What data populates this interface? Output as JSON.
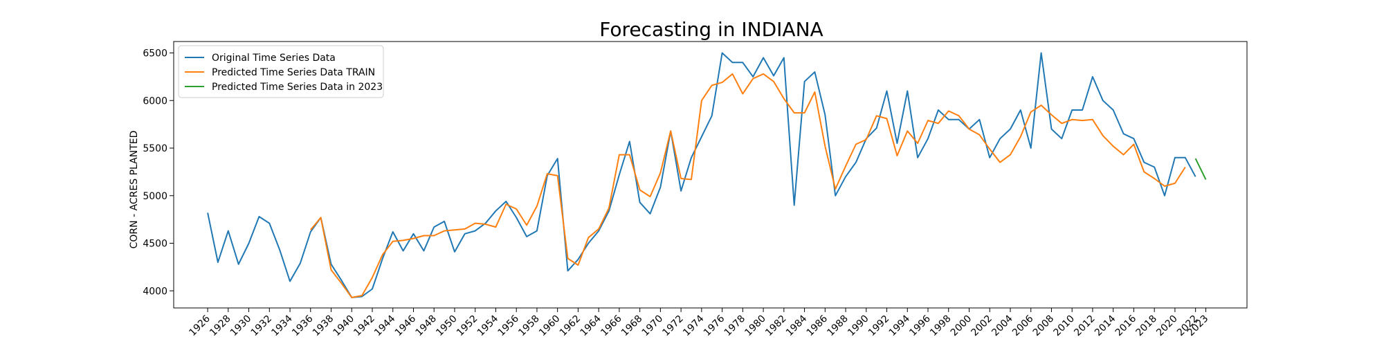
{
  "chart_data": {
    "type": "line",
    "title": "Forecasting in INDIANA",
    "xlabel": "",
    "ylabel": "CORN - ACRES PLANTED",
    "xlim": [
      1922.7,
      2027.0
    ],
    "ylim": [
      3820,
      6620
    ],
    "x_ticks": [
      1926,
      1928,
      1930,
      1932,
      1934,
      1936,
      1938,
      1940,
      1942,
      1944,
      1946,
      1948,
      1950,
      1952,
      1954,
      1956,
      1958,
      1960,
      1962,
      1964,
      1966,
      1968,
      1970,
      1972,
      1974,
      1976,
      1978,
      1980,
      1982,
      1984,
      1986,
      1988,
      1990,
      1992,
      1994,
      1996,
      1998,
      2000,
      2002,
      2004,
      2006,
      2008,
      2010,
      2012,
      2014,
      2016,
      2018,
      2020,
      2022,
      2023
    ],
    "y_ticks": [
      4000,
      4500,
      5000,
      5500,
      6000,
      6500
    ],
    "grid": false,
    "legend_position": "top-left",
    "series": [
      {
        "name": "Original Time Series Data",
        "color": "#1f77b4",
        "x": [
          1926,
          1927,
          1928,
          1929,
          1930,
          1931,
          1932,
          1933,
          1934,
          1935,
          1936,
          1937,
          1938,
          1939,
          1940,
          1941,
          1942,
          1943,
          1944,
          1945,
          1946,
          1947,
          1948,
          1949,
          1950,
          1951,
          1952,
          1953,
          1954,
          1955,
          1956,
          1957,
          1958,
          1959,
          1960,
          1961,
          1962,
          1963,
          1964,
          1965,
          1966,
          1967,
          1968,
          1969,
          1970,
          1971,
          1972,
          1973,
          1974,
          1975,
          1976,
          1977,
          1978,
          1979,
          1980,
          1981,
          1982,
          1983,
          1984,
          1985,
          1986,
          1987,
          1988,
          1989,
          1990,
          1991,
          1992,
          1993,
          1994,
          1995,
          1996,
          1997,
          1998,
          1999,
          2000,
          2001,
          2002,
          2003,
          2004,
          2005,
          2006,
          2007,
          2008,
          2009,
          2010,
          2011,
          2012,
          2013,
          2014,
          2015,
          2016,
          2017,
          2018,
          2019,
          2020,
          2021,
          2022
        ],
        "values": [
          4820,
          4300,
          4630,
          4280,
          4500,
          4780,
          4710,
          4430,
          4100,
          4290,
          4620,
          4770,
          4280,
          4110,
          3930,
          3940,
          4020,
          4340,
          4620,
          4420,
          4600,
          4420,
          4670,
          4730,
          4410,
          4600,
          4630,
          4710,
          4840,
          4940,
          4770,
          4570,
          4630,
          5210,
          5390,
          4210,
          4330,
          4500,
          4630,
          4840,
          5220,
          5570,
          4930,
          4810,
          5090,
          5680,
          5050,
          5400,
          5620,
          5840,
          6500,
          6400,
          6400,
          6250,
          6450,
          6260,
          6450,
          4900,
          6200,
          6300,
          5850,
          5000,
          5200,
          5350,
          5600,
          5710,
          6100,
          5550,
          6100,
          5400,
          5600,
          5900,
          5800,
          5800,
          5700,
          5800,
          5400,
          5600,
          5700,
          5900,
          5500,
          6500,
          5700,
          5600,
          5900,
          5900,
          6250,
          6000,
          5900,
          5650,
          5600,
          5350,
          5300,
          5000,
          5400,
          5400,
          5200
        ]
      },
      {
        "name": "Predicted Time Series Data TRAIN",
        "color": "#ff7f0e",
        "x": [
          1936,
          1937,
          1938,
          1939,
          1940,
          1941,
          1942,
          1943,
          1944,
          1945,
          1946,
          1947,
          1948,
          1949,
          1950,
          1951,
          1952,
          1953,
          1954,
          1955,
          1956,
          1957,
          1958,
          1959,
          1960,
          1961,
          1962,
          1963,
          1964,
          1965,
          1966,
          1967,
          1968,
          1969,
          1970,
          1971,
          1972,
          1973,
          1974,
          1975,
          1976,
          1977,
          1978,
          1979,
          1980,
          1981,
          1982,
          1983,
          1984,
          1985,
          1986,
          1987,
          1988,
          1989,
          1990,
          1991,
          1992,
          1993,
          1994,
          1995,
          1996,
          1997,
          1998,
          1999,
          2000,
          2001,
          2002,
          2003,
          2004,
          2005,
          2006,
          2007,
          2008,
          2009,
          2010,
          2011,
          2012,
          2013,
          2014,
          2015,
          2016,
          2017,
          2018,
          2019,
          2020,
          2021
        ],
        "values": [
          4640,
          4770,
          4220,
          4080,
          3930,
          3950,
          4140,
          4380,
          4520,
          4530,
          4550,
          4580,
          4580,
          4630,
          4640,
          4650,
          4710,
          4700,
          4670,
          4910,
          4860,
          4690,
          4890,
          5230,
          5210,
          4340,
          4270,
          4560,
          4650,
          4870,
          5430,
          5430,
          5060,
          4990,
          5240,
          5680,
          5180,
          5170,
          6000,
          6160,
          6190,
          6280,
          6070,
          6230,
          6280,
          6200,
          6020,
          5870,
          5870,
          6090,
          5520,
          5070,
          5310,
          5540,
          5590,
          5840,
          5810,
          5420,
          5680,
          5550,
          5790,
          5760,
          5890,
          5840,
          5700,
          5640,
          5490,
          5350,
          5430,
          5620,
          5880,
          5950,
          5850,
          5760,
          5800,
          5790,
          5800,
          5630,
          5520,
          5430,
          5540,
          5250,
          5180,
          5100,
          5130,
          5300
        ]
      },
      {
        "name": "Predicted Time Series Data in 2023",
        "color": "#2ca02c",
        "x": [
          2022,
          2023
        ],
        "values": [
          5390,
          5170
        ]
      }
    ]
  }
}
